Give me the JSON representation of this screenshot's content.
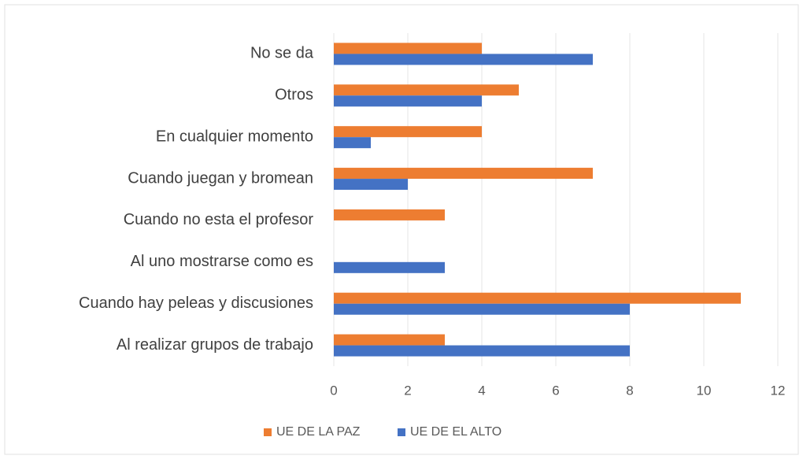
{
  "chart_data": {
    "type": "hbar",
    "categories": [
      "No se da",
      "Otros",
      "En cualquier momento",
      "Cuando juegan y bromean",
      "Cuando no esta el profesor",
      "Al uno mostrarse como es",
      "Cuando hay peleas y discusiones",
      "Al realizar grupos de trabajo"
    ],
    "series": [
      {
        "name": "UE DE LA PAZ",
        "color": "#ed7d31",
        "values": [
          4,
          5,
          4,
          7,
          3,
          0,
          11,
          3
        ]
      },
      {
        "name": "UE DE EL ALTO",
        "color": "#4472c4",
        "values": [
          7,
          4,
          1,
          2,
          0,
          3,
          8,
          8
        ]
      }
    ],
    "xlim": [
      0,
      12
    ],
    "xticks": [
      0,
      2,
      4,
      6,
      8,
      10,
      12
    ],
    "grid": true,
    "legend": "bottom"
  }
}
